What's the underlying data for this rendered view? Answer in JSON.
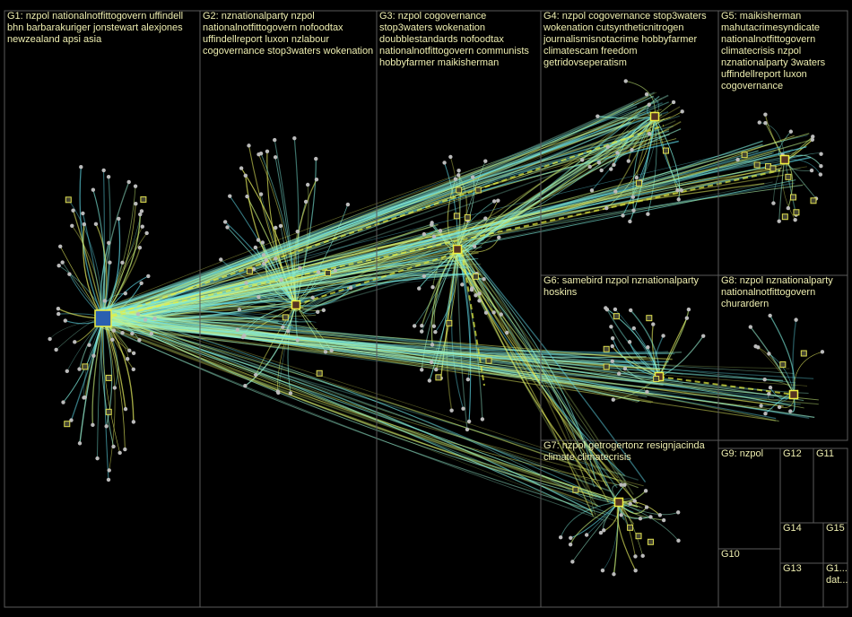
{
  "groups": [
    {
      "lines": [
        "G1: nzpol nationalnotfittogovern uffindell",
        "bhn barbarakuriger jonstewart alexjones",
        "newzealand apsi asia"
      ]
    },
    {
      "lines": [
        "G2: nznationalparty nzpol",
        "nationalnotfittogovern nofoodtax",
        "uffindellreport luxon nzlabour",
        "cogovernance stop3waters wokenation"
      ]
    },
    {
      "lines": [
        "G3: nzpol cogovernance",
        "stop3waters wokenation",
        "doubblestandards nofoodtax",
        "nationalnotfittogovern communists",
        "hobbyfarmer maikisherman"
      ]
    },
    {
      "lines": [
        "G4: nzpol cogovernance stop3waters",
        "wokenation cutsyntheticnitrogen",
        "journalismisnotacrime hobbyfarmer",
        "climatescam freedom",
        "getridovseperatism"
      ]
    },
    {
      "lines": [
        "G5: maikisherman",
        "mahutacrimesyndicate",
        "nationalnotfittogovern",
        "climatecrisis nzpol",
        "nznationalparty 3waters",
        "uffindellreport luxon",
        "cogovernance"
      ]
    },
    {
      "lines": [
        "G6: samebird nzpol nznationalparty",
        "hoskins"
      ]
    },
    {
      "lines": [
        "G8: nzpol nznationalparty",
        "nationalnotfittogovern",
        "churardern"
      ]
    },
    {
      "lines": [
        "G7: nzpol getrogertonz resignjacinda",
        "climate climatecrisis"
      ]
    },
    {
      "lines": [
        "G9: nzpol"
      ]
    },
    {
      "lines": [
        "G12"
      ]
    },
    {
      "lines": [
        "G11"
      ]
    },
    {
      "lines": [
        "G14"
      ]
    },
    {
      "lines": [
        "G15"
      ]
    },
    {
      "lines": [
        "G10"
      ]
    },
    {
      "lines": [
        "G13"
      ]
    },
    {
      "lines": [
        "G1...",
        "dat..."
      ]
    }
  ]
}
